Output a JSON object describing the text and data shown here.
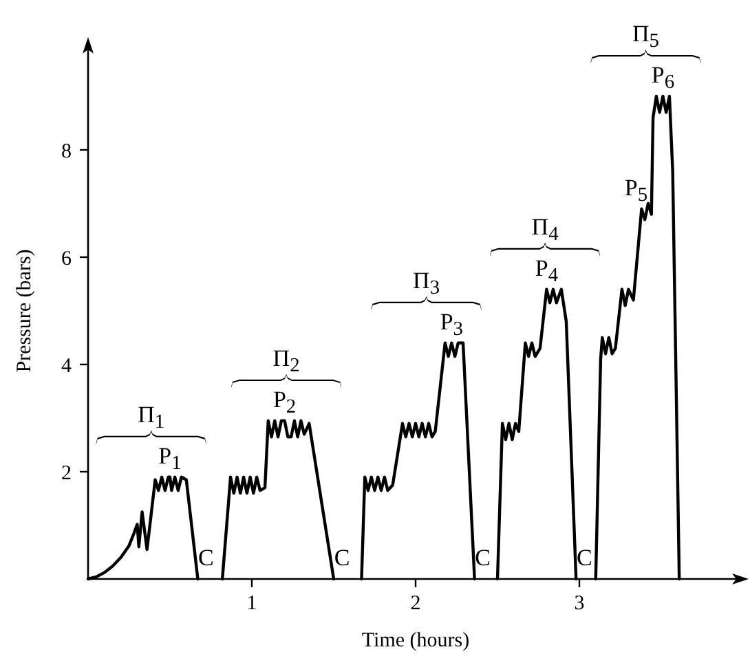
{
  "chart_data": {
    "type": "line",
    "xlabel": "Time (hours)",
    "ylabel": "Pressure (bars)",
    "xlim": [
      0,
      4
    ],
    "ylim": [
      0,
      10
    ],
    "xticks": [
      1,
      2,
      3
    ],
    "yticks": [
      2,
      4,
      6,
      8
    ],
    "marker": "none",
    "line_style": "solid",
    "series": [
      {
        "color": "#000000",
        "x": [
          0,
          0.05,
          0.1,
          0.15,
          0.2,
          0.25,
          0.28,
          0.3,
          0.31,
          0.33,
          0.36,
          0.41,
          0.43,
          0.45,
          0.47,
          0.49,
          0.5,
          0.51,
          0.53,
          0.55,
          0.57,
          0.6,
          0.67
        ],
        "values": [
          0,
          0.04,
          0.12,
          0.24,
          0.4,
          0.62,
          0.85,
          1.02,
          0.6,
          1.25,
          0.55,
          1.85,
          1.65,
          1.9,
          1.65,
          1.9,
          1.9,
          1.65,
          1.9,
          1.65,
          1.9,
          1.85,
          0
        ]
      },
      {
        "color": "#000000",
        "x": [
          0.82,
          0.87,
          0.89,
          0.91,
          0.93,
          0.95,
          0.97,
          0.99,
          1.01,
          1.03,
          1.05,
          1.08,
          1.1,
          1.12,
          1.14,
          1.16,
          1.18,
          1.2,
          1.22,
          1.24,
          1.26,
          1.28,
          1.3,
          1.32,
          1.35,
          1.5
        ],
        "values": [
          0,
          1.9,
          1.6,
          1.9,
          1.6,
          1.9,
          1.6,
          1.9,
          1.6,
          1.9,
          1.65,
          1.7,
          2.95,
          2.65,
          2.95,
          2.65,
          2.95,
          2.95,
          2.65,
          2.65,
          2.95,
          2.65,
          2.95,
          2.7,
          2.9,
          0
        ]
      },
      {
        "color": "#000000",
        "x": [
          1.67,
          1.69,
          1.71,
          1.73,
          1.75,
          1.77,
          1.79,
          1.81,
          1.83,
          1.86,
          1.92,
          1.94,
          1.96,
          1.98,
          2.0,
          2.02,
          2.04,
          2.06,
          2.08,
          2.1,
          2.12,
          2.18,
          2.2,
          2.22,
          2.24,
          2.26,
          2.29,
          2.36
        ],
        "values": [
          0,
          1.9,
          1.65,
          1.9,
          1.65,
          1.9,
          1.65,
          1.9,
          1.65,
          1.75,
          2.9,
          2.65,
          2.9,
          2.65,
          2.9,
          2.65,
          2.9,
          2.65,
          2.9,
          2.65,
          2.75,
          4.4,
          4.15,
          4.4,
          4.15,
          4.4,
          4.4,
          0
        ]
      },
      {
        "color": "#000000",
        "x": [
          2.5,
          2.53,
          2.55,
          2.57,
          2.59,
          2.61,
          2.63,
          2.67,
          2.69,
          2.71,
          2.73,
          2.76,
          2.8,
          2.82,
          2.84,
          2.86,
          2.89,
          2.92,
          2.98
        ],
        "values": [
          0,
          2.9,
          2.6,
          2.9,
          2.6,
          2.9,
          2.75,
          4.4,
          4.15,
          4.4,
          4.15,
          4.3,
          5.4,
          5.15,
          5.4,
          5.15,
          5.4,
          4.8,
          0
        ]
      },
      {
        "color": "#000000",
        "x": [
          3.1,
          3.13,
          3.14,
          3.16,
          3.18,
          3.2,
          3.22,
          3.26,
          3.28,
          3.3,
          3.33,
          3.38,
          3.4,
          3.42,
          3.44,
          3.45,
          3.47,
          3.49,
          3.51,
          3.53,
          3.55,
          3.57,
          3.61
        ],
        "values": [
          0,
          4.1,
          4.5,
          4.2,
          4.5,
          4.2,
          4.3,
          5.4,
          5.1,
          5.4,
          5.2,
          6.9,
          6.7,
          7.0,
          6.8,
          8.6,
          9.0,
          8.7,
          9.0,
          8.7,
          9.0,
          7.6,
          0
        ]
      }
    ],
    "annotations": [
      "Π$_{1}$",
      "Π$_{2}$",
      "Π$_{3}$",
      "Π$_{4}$",
      "Π$_{5}$",
      {
        "text": "P$_{1}$",
        "x": 0.5,
        "y": 1.9
      },
      {
        "text": "P$_{2}$",
        "x": 1.2,
        "y": 2.95
      },
      {
        "text": "P$_{3}$",
        "x": 2.22,
        "y": 4.4
      },
      {
        "text": "P$_{4}$",
        "x": 2.8,
        "y": 5.4
      },
      {
        "text": "P$_{5}$",
        "x": 3.38,
        "y": 6.9
      },
      {
        "text": "P$_{6}$",
        "x": 3.51,
        "y": 9.0
      },
      {
        "text": "C",
        "x": 0.67,
        "y": 0
      },
      {
        "text": "C",
        "x": 1.5,
        "y": 0
      },
      {
        "text": "C",
        "x": 2.36,
        "y": 0
      },
      {
        "text": "C",
        "x": 2.98,
        "y": 0
      }
    ]
  }
}
